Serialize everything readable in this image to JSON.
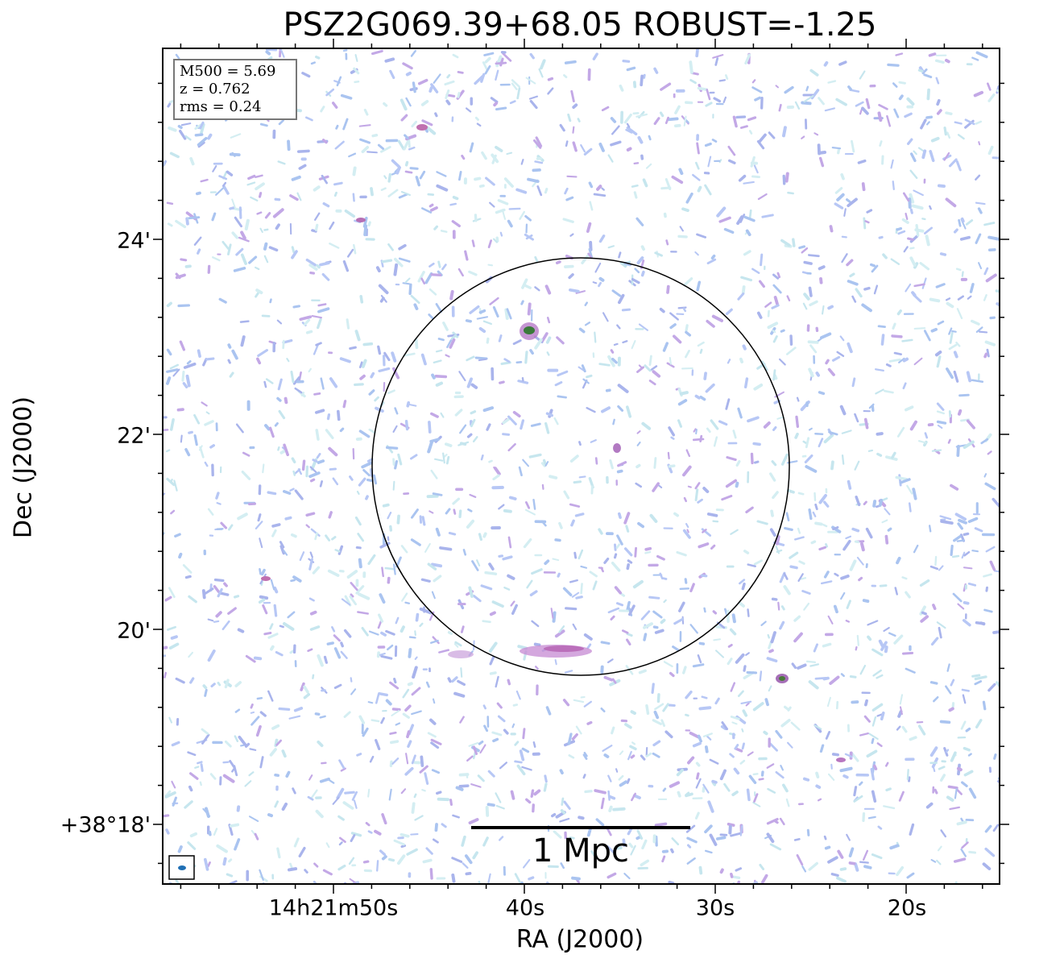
{
  "title": "PSZ2G069.39+68.05 ROBUST=-1.25",
  "x_axis": {
    "label": "RA (J2000)",
    "ticks": [
      "14h21m50s",
      "40s",
      "30s",
      "20s"
    ]
  },
  "y_axis": {
    "label": "Dec (J2000)",
    "ticks": [
      "24'",
      "22'",
      "20'",
      "+38°18'"
    ]
  },
  "info_box": [
    "M500 = 5.69",
    "z = 0.762",
    "rms = 0.24"
  ],
  "scale_bar": "1 Mpc"
}
